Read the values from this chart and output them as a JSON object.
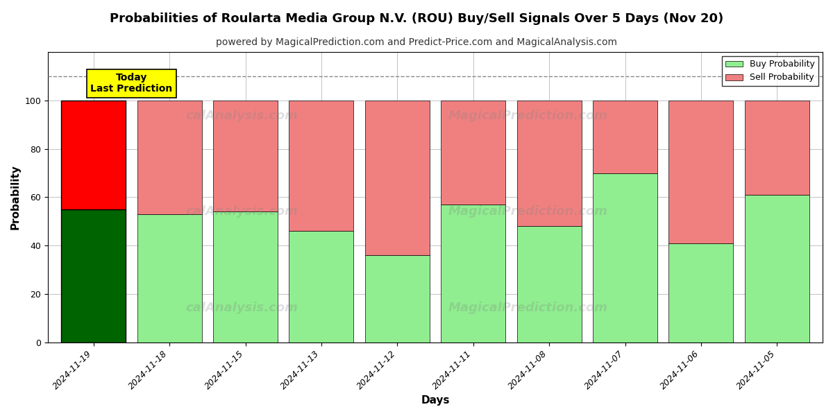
{
  "title": "Probabilities of Roularta Media Group N.V. (ROU) Buy/Sell Signals Over 5 Days (Nov 20)",
  "subtitle": "powered by MagicalPrediction.com and Predict-Price.com and MagicalAnalysis.com",
  "xlabel": "Days",
  "ylabel": "Probability",
  "categories": [
    "2024-11-19",
    "2024-11-18",
    "2024-11-15",
    "2024-11-13",
    "2024-11-12",
    "2024-11-11",
    "2024-11-08",
    "2024-11-07",
    "2024-11-06",
    "2024-11-05"
  ],
  "buy_values": [
    55,
    53,
    54,
    46,
    36,
    57,
    48,
    70,
    41,
    61
  ],
  "sell_values": [
    45,
    47,
    46,
    54,
    64,
    43,
    52,
    30,
    59,
    39
  ],
  "buy_color_today": "#006400",
  "sell_color_today": "#ff0000",
  "buy_color_normal": "#90ee90",
  "sell_color_normal": "#f08080",
  "today_label_bg": "#ffff00",
  "today_label_text": "Today\nLast Prediction",
  "legend_buy": "Buy Probability",
  "legend_sell": "Sell Probability",
  "ylim": [
    0,
    120
  ],
  "yticks": [
    0,
    20,
    40,
    60,
    80,
    100
  ],
  "dashed_line_y": 110,
  "bar_width": 0.85,
  "background_color": "#ffffff",
  "grid_color": "#aaaaaa",
  "title_fontsize": 13,
  "subtitle_fontsize": 10,
  "axis_label_fontsize": 11,
  "tick_fontsize": 9
}
